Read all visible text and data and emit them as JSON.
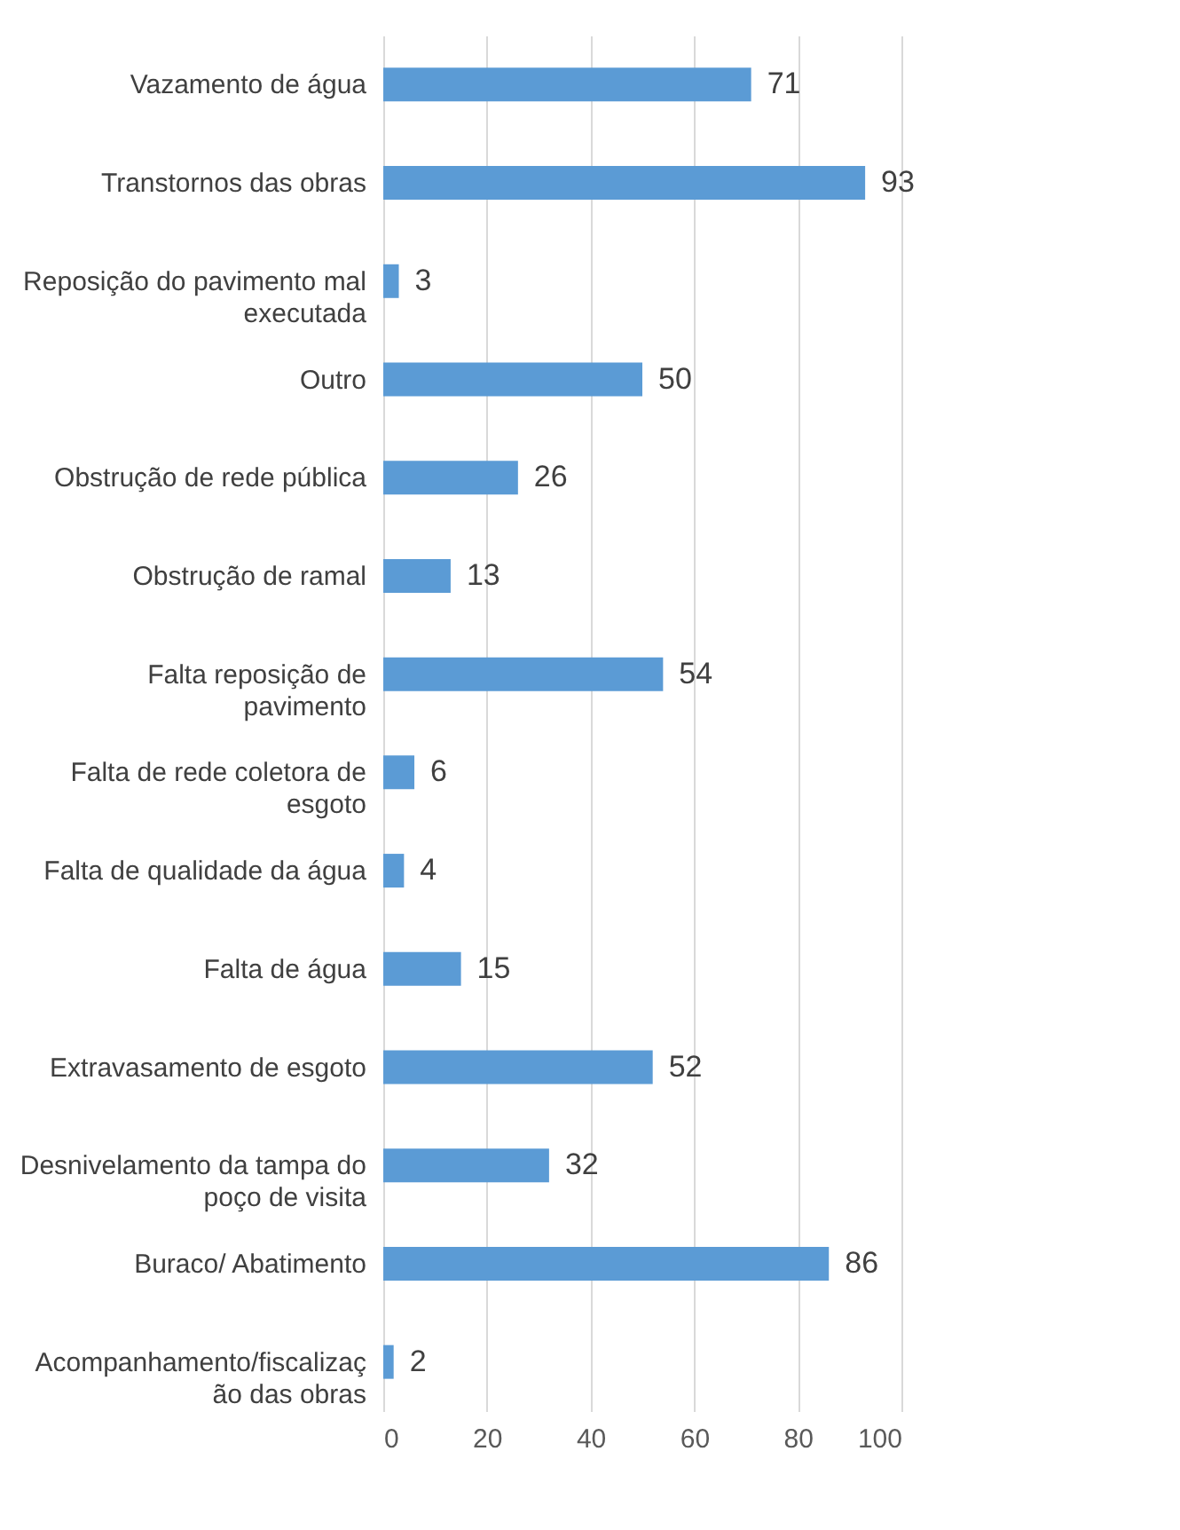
{
  "chart_data": {
    "type": "bar",
    "orientation": "horizontal",
    "categories": [
      "Vazamento de água",
      "Transtornos das obras",
      "Reposição do pavimento mal executada",
      "Outro",
      "Obstrução de rede pública",
      "Obstrução de ramal",
      "Falta reposição de pavimento",
      "Falta de rede coletora de esgoto",
      "Falta de qualidade da água",
      "Falta de água",
      "Extravasamento de esgoto",
      "Desnivelamento da tampa do poço de visita",
      "Buraco/ Abatimento",
      "Acompanhamento/fiscalização das obras"
    ],
    "values": [
      71,
      93,
      3,
      50,
      26,
      13,
      54,
      6,
      4,
      15,
      52,
      32,
      86,
      2
    ],
    "color": "#5b9bd5",
    "xlim": [
      0,
      100
    ],
    "xticks": [
      0,
      20,
      40,
      60,
      80,
      100
    ],
    "grid": "x",
    "data_labels": true
  }
}
